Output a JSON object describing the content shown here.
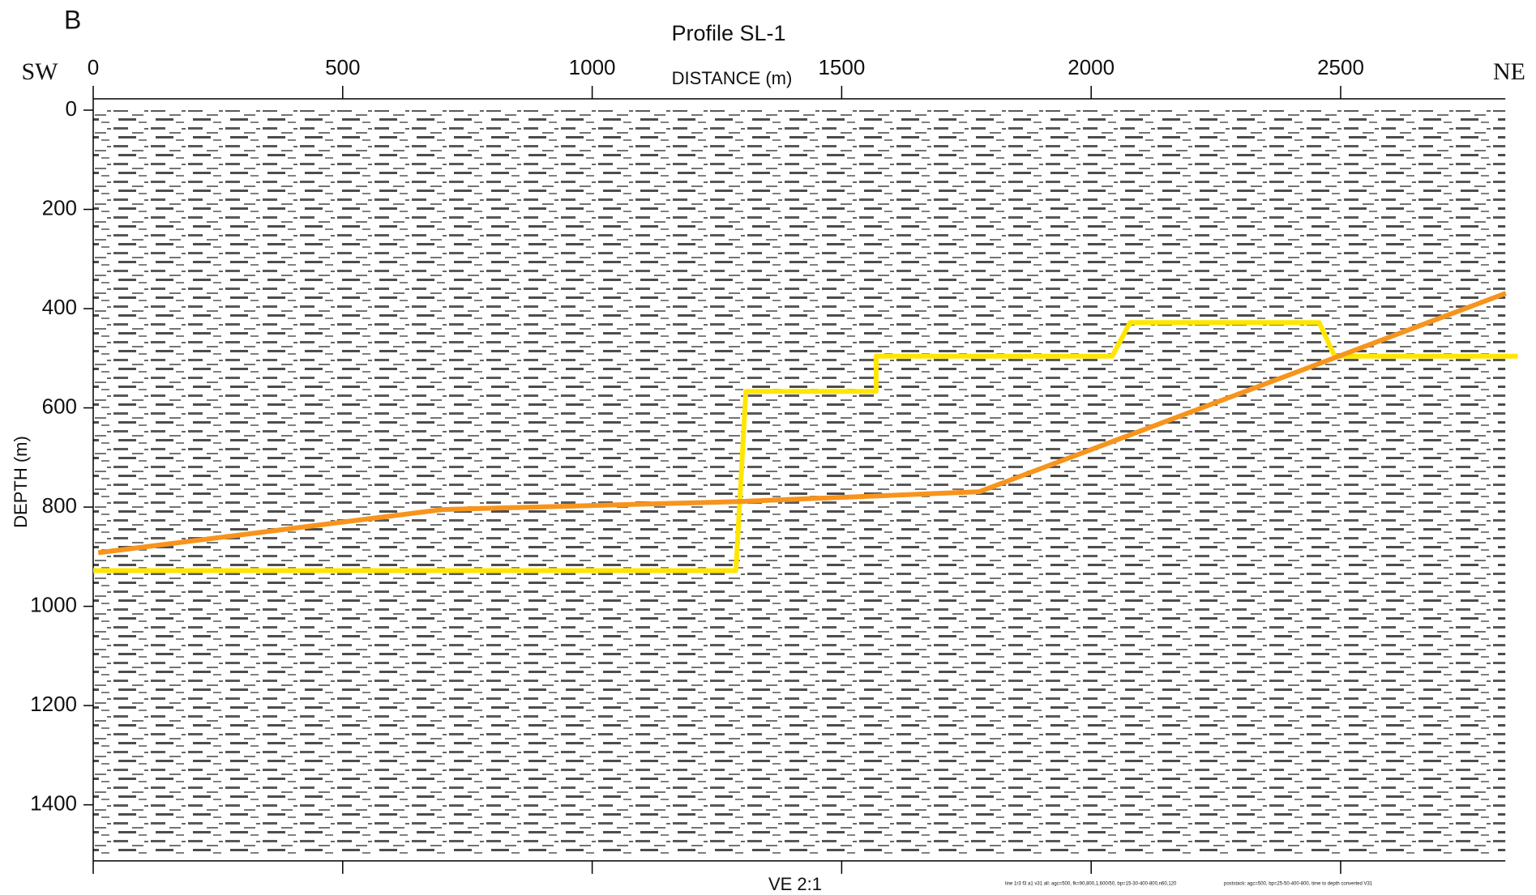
{
  "label": "B",
  "chart_data": {
    "type": "line",
    "title": "Profile SL-1",
    "left_label": "SW",
    "right_label": "NE",
    "xlabel": "DISTANCE (m)",
    "ylabel": "DEPTH (m)",
    "footer": "VE 2:1",
    "notes": [
      "line 1r3 f3 a1 v31 all: agc=500, fk=90,800,1,600/50, bp=15-30-400-800,n60,120",
      "poststack: agc=500, bp=25-50-400-800, time to depth converted V31"
    ],
    "xlim": [
      0,
      2830
    ],
    "xticks": [
      0,
      500,
      1000,
      1500,
      2000,
      2500
    ],
    "ylim": [
      0,
      1500
    ],
    "yticks": [
      0,
      200,
      400,
      600,
      800,
      1000,
      1200,
      1400
    ],
    "y_inverted": true,
    "series": [
      {
        "color": "#ffe600",
        "x": [
          0,
          1288,
          1308,
          1569,
          1569,
          2042,
          2078,
          2457,
          2488,
          2855
        ],
        "values": [
          928,
          928,
          567,
          567,
          496,
          496,
          428,
          428,
          496,
          496
        ]
      },
      {
        "color": "#f7941d",
        "x": [
          10,
          700,
          1292,
          1776,
          2831
        ],
        "values": [
          892,
          805,
          789,
          769,
          369
        ]
      }
    ]
  }
}
